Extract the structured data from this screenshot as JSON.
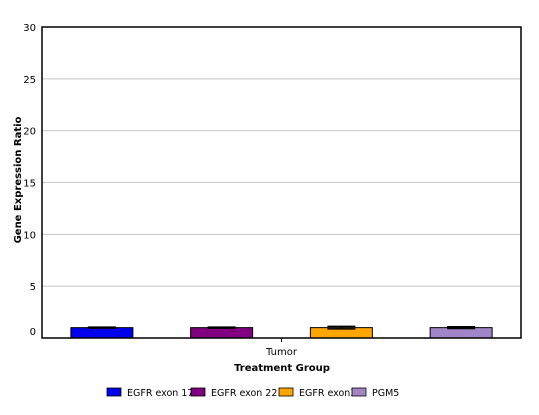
{
  "chart_data": {
    "type": "bar",
    "categories": [
      "Tumor"
    ],
    "series": [
      {
        "name": "EGFR exon 17",
        "values": [
          1.0
        ],
        "error": [
          0.05
        ],
        "color": "#0000ee"
      },
      {
        "name": "EGFR exon 22",
        "values": [
          1.0
        ],
        "error": [
          0.05
        ],
        "color": "#800080"
      },
      {
        "name": "EGFR exon3",
        "values": [
          1.0
        ],
        "error": [
          0.12
        ],
        "color": "#ffa500"
      },
      {
        "name": "PGM5",
        "values": [
          1.0
        ],
        "error": [
          0.08
        ],
        "color": "#a285c8"
      }
    ],
    "title": "",
    "xlabel": "Treatment Group",
    "ylabel": "Gene Expression Ratio",
    "ylim": [
      0,
      30
    ],
    "yticks": [
      0,
      5,
      10,
      15,
      20,
      25,
      30
    ],
    "grid": true,
    "legend_position": "bottom"
  }
}
